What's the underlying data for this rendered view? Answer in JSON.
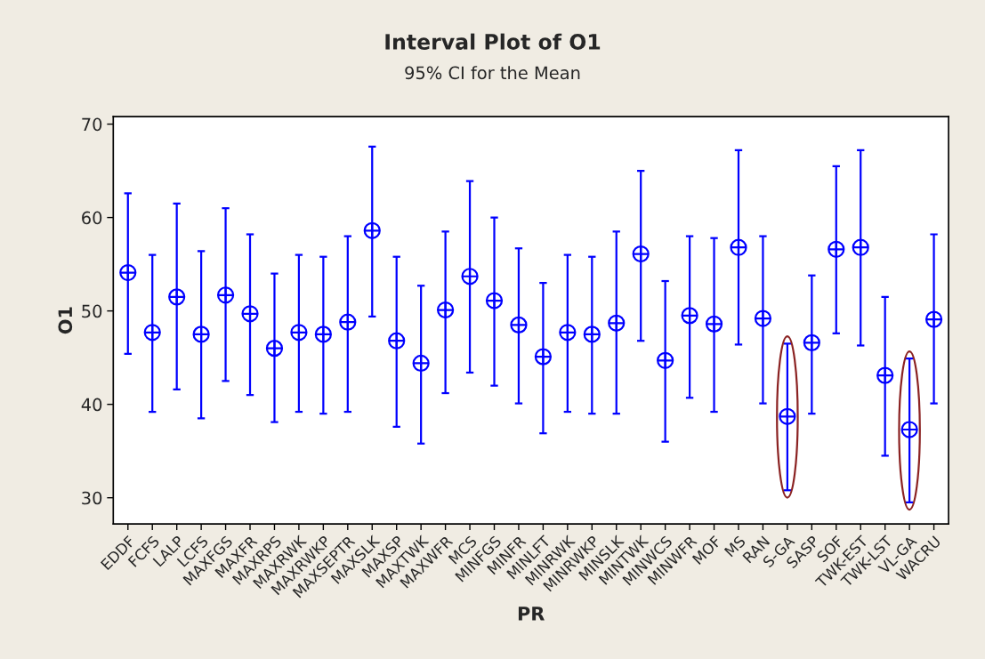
{
  "chart_data": {
    "type": "scatter",
    "title": "Interval Plot of O1",
    "subtitle": "95% CI for the Mean",
    "xlabel": "PR",
    "ylabel": "O1",
    "categories": [
      "EDDF",
      "FCFS",
      "LALP",
      "LCFS",
      "MAXFGS",
      "MAXFR",
      "MAXRPS",
      "MAXRWK",
      "MAXRWKP",
      "MAXSEPTR",
      "MAXSLK",
      "MAXSP",
      "MAXTWK",
      "MAXWFR",
      "MCS",
      "MINFGS",
      "MINFR",
      "MINLFT",
      "MINRWK",
      "MINRWKP",
      "MINSLK",
      "MINTWK",
      "MINWCS",
      "MINWFR",
      "MOF",
      "MS",
      "RAN",
      "S-GA",
      "SASP",
      "SOF",
      "TWK-EST",
      "TWK-LST",
      "VL-GA",
      "WACRU"
    ],
    "series": [
      {
        "color": "#0000ff",
        "values": [
          54.1,
          47.7,
          51.5,
          47.5,
          51.7,
          49.7,
          46.0,
          47.7,
          47.5,
          48.8,
          58.6,
          46.8,
          44.4,
          50.1,
          53.7,
          51.1,
          48.5,
          45.1,
          47.7,
          47.5,
          48.7,
          56.1,
          44.7,
          49.5,
          48.6,
          56.8,
          49.2,
          38.7,
          46.6,
          56.6,
          56.8,
          43.1,
          37.3,
          49.1
        ],
        "errors": [
          [
            45.4,
            62.6
          ],
          [
            39.2,
            56.0
          ],
          [
            41.6,
            61.5
          ],
          [
            38.5,
            56.4
          ],
          [
            42.5,
            61.0
          ],
          [
            41.0,
            58.2
          ],
          [
            38.1,
            54.0
          ],
          [
            39.2,
            56.0
          ],
          [
            39.0,
            55.8
          ],
          [
            39.2,
            58.0
          ],
          [
            49.4,
            67.6
          ],
          [
            37.6,
            55.8
          ],
          [
            35.8,
            52.7
          ],
          [
            41.2,
            58.5
          ],
          [
            43.4,
            63.9
          ],
          [
            42.0,
            60.0
          ],
          [
            40.1,
            56.7
          ],
          [
            36.9,
            53.0
          ],
          [
            39.2,
            56.0
          ],
          [
            39.0,
            55.8
          ],
          [
            39.0,
            58.5
          ],
          [
            46.8,
            65.0
          ],
          [
            36.0,
            53.2
          ],
          [
            40.7,
            58.0
          ],
          [
            39.2,
            57.8
          ],
          [
            46.4,
            67.2
          ],
          [
            40.1,
            58.0
          ],
          [
            30.8,
            46.5
          ],
          [
            39.0,
            53.8
          ],
          [
            47.6,
            65.5
          ],
          [
            46.3,
            67.2
          ],
          [
            34.5,
            51.5
          ],
          [
            29.5,
            44.9
          ],
          [
            40.1,
            58.2
          ]
        ]
      }
    ],
    "ylim": [
      27.2,
      70.8
    ],
    "yticks": [
      30,
      40,
      50,
      60,
      70
    ],
    "grid": false,
    "marker": "circle"
  }
}
